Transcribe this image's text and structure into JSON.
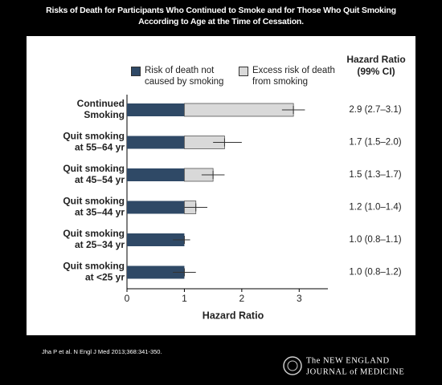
{
  "chart_data": {
    "type": "stacked_hbar",
    "title": [
      "Risks of Death for Participants Who Continued to Smoke and for Those Who Quit Smoking",
      "According to Age at the Time of Cessation."
    ],
    "categories": [
      [
        "Continued",
        "Smoking"
      ],
      [
        "Quit smoking",
        "at 55–64 yr"
      ],
      [
        "Quit smoking",
        "at 45–54 yr"
      ],
      [
        "Quit smoking",
        "at 35–44 yr"
      ],
      [
        "Quit smoking",
        "at 25–34 yr"
      ],
      [
        "Quit smoking",
        "at <25 yr"
      ]
    ],
    "series": [
      {
        "name": "Risk of death not caused by smoking",
        "color": "#2f4966",
        "values": [
          1,
          1,
          1,
          1,
          1,
          1
        ]
      },
      {
        "name": "Excess risk of death from smoking",
        "color": "#d9d9d9",
        "values": [
          1.9,
          0.7,
          0.5,
          0.2,
          0,
          0
        ]
      }
    ],
    "hazard_ratios": [
      2.9,
      1.7,
      1.5,
      1.2,
      1.0,
      1.0
    ],
    "ci_low": [
      2.7,
      1.5,
      1.3,
      1.0,
      0.8,
      0.8
    ],
    "ci_high": [
      3.1,
      2.0,
      1.7,
      1.4,
      1.1,
      1.2
    ],
    "hazard_ratio_header": [
      "Hazard Ratio",
      "(99% CI)"
    ],
    "hazard_ratio_labels": [
      "2.9 (2.7–3.1)",
      "1.7 (1.5–2.0)",
      "1.5 (1.3–1.7)",
      "1.2 (1.0–1.4)",
      "1.0 (0.8–1.1)",
      "1.0 (0.8–1.2)"
    ],
    "xlabel": "Hazard Ratio",
    "xlim": [
      0,
      3.5
    ],
    "xticks": [
      0,
      1,
      2,
      3
    ],
    "source": "Jha P et al. N Engl J Med 2013;368:341-350.",
    "publisher": [
      "The NEW ENGLAND",
      "JOURNAL of MEDICINE"
    ]
  }
}
